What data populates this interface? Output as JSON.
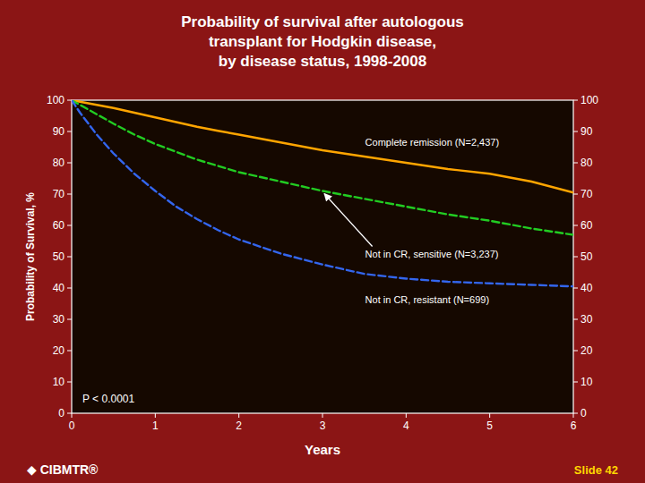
{
  "chart_data": {
    "type": "line",
    "title": "Probability of survival after autologous\ntransplant for Hodgkin disease,\nby disease status, 1998-2008",
    "x_label": "Years",
    "y_label": "Probability of Survival, %",
    "x": [
      0,
      0.1,
      0.3,
      0.5,
      0.75,
      1.0,
      1.25,
      1.5,
      1.75,
      2.0,
      2.5,
      3.0,
      3.5,
      4.0,
      4.5,
      5.0,
      5.5,
      6.0
    ],
    "series": [
      {
        "color": "#FFA500",
        "line_style": "solid",
        "values": [
          100,
          99.5,
          98.5,
          97.5,
          96.0,
          94.5,
          93.0,
          91.5,
          90.2,
          89.0,
          86.5,
          84.0,
          82.0,
          80.0,
          78.0,
          76.5,
          74.0,
          70.5
        ]
      },
      {
        "color": "#22CC22",
        "line_style": "dashed",
        "values": [
          100,
          98.5,
          95.5,
          92.5,
          89.0,
          86.0,
          83.5,
          81.0,
          79.0,
          77.0,
          74.0,
          71.0,
          68.5,
          66.0,
          63.5,
          61.5,
          59.0,
          57.0
        ]
      },
      {
        "color": "#3366EE",
        "line_style": "dashed",
        "values": [
          100,
          96.0,
          89.0,
          83.0,
          76.5,
          71.0,
          66.0,
          62.0,
          58.5,
          55.5,
          51.0,
          47.5,
          44.5,
          43.0,
          42.0,
          41.5,
          41.0,
          40.5
        ]
      }
    ],
    "xlim": [
      0,
      6
    ],
    "ylim": [
      0,
      100
    ],
    "xticks": [
      0,
      1,
      2,
      3,
      4,
      5,
      6
    ],
    "yticks": [
      0,
      10,
      20,
      30,
      40,
      50,
      60,
      70,
      80,
      90,
      100
    ],
    "y2lim": [
      0,
      100
    ],
    "y2ticks": [
      0,
      10,
      20,
      30,
      40,
      50,
      60,
      70,
      80,
      90,
      100
    ],
    "grid": false,
    "annotations": [
      "P < 0.0001",
      "Complete remission (N=2,437)",
      "Not in CR, sensitive (N=3,237)",
      "Not in CR, resistant (N=699)",
      "◆ CIBMTR®",
      "Slide 42"
    ]
  }
}
